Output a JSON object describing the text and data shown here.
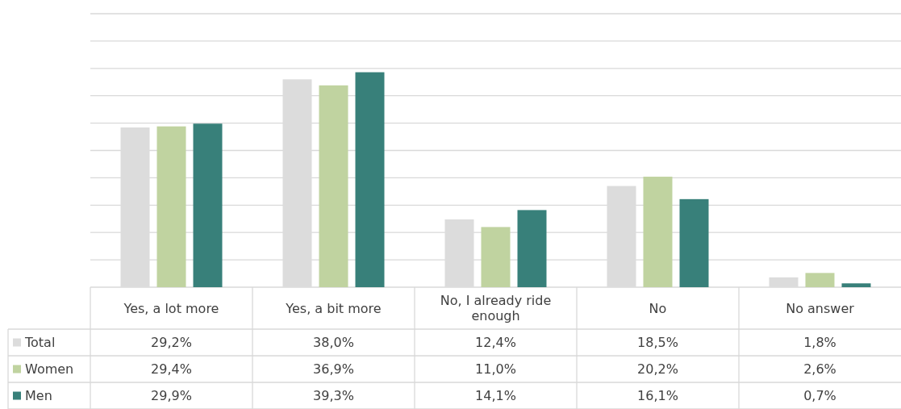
{
  "chart_data": {
    "type": "bar",
    "categories": [
      "Yes, a lot more",
      "Yes, a bit more",
      "No, I already ride enough",
      "No",
      "No answer"
    ],
    "series": [
      {
        "name": "Total",
        "color": "#dcdcdc",
        "values": [
          29.2,
          38.0,
          12.4,
          18.5,
          1.8
        ],
        "value_labels": [
          "29,2%",
          "38,0%",
          "12,4%",
          "18,5%",
          "1,8%"
        ]
      },
      {
        "name": "Women",
        "color": "#c0d3a0",
        "values": [
          29.4,
          36.9,
          11.0,
          20.2,
          2.6
        ],
        "value_labels": [
          "29,4%",
          "36,9%",
          "11,0%",
          "20,2%",
          "2,6%"
        ]
      },
      {
        "name": "Men",
        "color": "#38807a",
        "values": [
          29.9,
          39.3,
          14.1,
          16.1,
          0.7
        ],
        "value_labels": [
          "29,9%",
          "39,3%",
          "14,1%",
          "16,1%",
          "0,7%"
        ]
      }
    ],
    "ylim": [
      0,
      50
    ],
    "yticks": [
      {
        "value": 0,
        "label": null
      },
      {
        "value": 5,
        "label": null
      },
      {
        "value": 10,
        "label": null
      },
      {
        "value": 15,
        "label": null
      },
      {
        "value": 20,
        "label": null
      },
      {
        "value": 25,
        "label": null
      },
      {
        "value": 30,
        "label": null
      },
      {
        "value": 35,
        "label": null
      },
      {
        "value": 40,
        "label": null
      },
      {
        "value": 45,
        "label": null
      },
      {
        "value": 50,
        "label": null
      }
    ],
    "grid": "y",
    "legend": "bottom left"
  }
}
